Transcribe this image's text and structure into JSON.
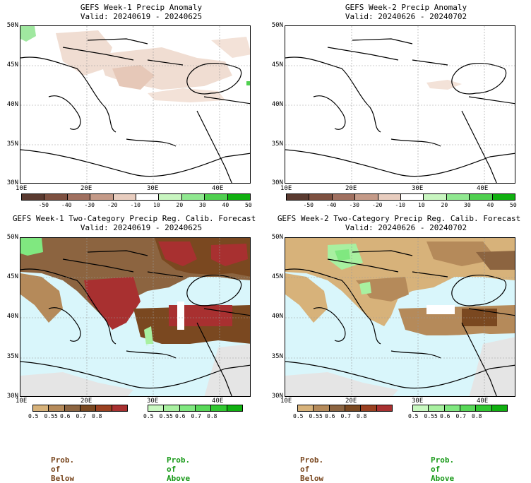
{
  "panels": [
    {
      "title": "GEFS Week-1 Precip Anomaly",
      "valid": "Valid: 20240619 - 20240625"
    },
    {
      "title": "GEFS Week-2 Precip Anomaly",
      "valid": "Valid: 20240626 - 20240702"
    },
    {
      "title": "GEFS Week-1 Two-Category Precip Reg. Calib. Forecast",
      "valid": "Valid: 20240619 - 20240625"
    },
    {
      "title": "GEFS Week-2 Two-Category Precip Reg. Calib. Forecast",
      "valid": "Valid: 20240626 - 20240702"
    }
  ],
  "lat_labels": [
    "50N",
    "45N",
    "40N",
    "35N",
    "30N"
  ],
  "lon_labels": [
    "10E",
    "20E",
    "30E",
    "40E"
  ],
  "anomaly_colorbar": {
    "ticks": [
      "-50",
      "-40",
      "-30",
      "-20",
      "-10",
      "10",
      "20",
      "30",
      "40",
      "50"
    ],
    "colors": [
      "#5a3a30",
      "#7d5040",
      "#a07060",
      "#c49a88",
      "#e8cdbf",
      "#ffffff",
      "#c8f5c0",
      "#90e890",
      "#50d050",
      "#10b010"
    ]
  },
  "prob_colorbar_below": {
    "ticks": [
      "0.5",
      "0.55",
      "0.6",
      "0.7",
      "0.8"
    ],
    "colors": [
      "#d7b27a",
      "#b58a5a",
      "#8c6440",
      "#7a4820",
      "#9a4020",
      "#a83030"
    ]
  },
  "prob_colorbar_above": {
    "ticks": [
      "0.5",
      "0.55",
      "0.6",
      "0.7",
      "0.8"
    ],
    "colors": [
      "#c8f8c0",
      "#a8f0a0",
      "#80e880",
      "#58d858",
      "#30c830",
      "#10b010"
    ]
  },
  "legend": {
    "below": "Prob. of Below",
    "above": "Prob. of Above"
  },
  "colors": {
    "sea": "#d9f6fb",
    "land_gray": "#e5e5e5",
    "below_label": "#7a4820",
    "above_label": "#1a9a1a"
  }
}
